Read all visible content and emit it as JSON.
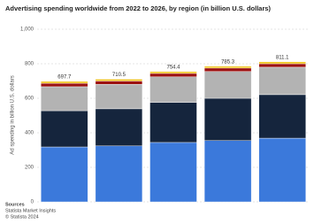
{
  "chart_data": {
    "type": "stacked-bar",
    "title": "Advertising spending worldwide from 2022 to 2026, by region (in billion U.S. dollars)",
    "y_label": "Ad spending in billion U.S. dollars",
    "categories": [
      null,
      null,
      null,
      null,
      null
    ],
    "series": [
      {
        "color": "#3b79db",
        "values": [
          318,
          324,
          344,
          355,
          369
        ]
      },
      {
        "color": "#15253d",
        "values": [
          210,
          215,
          232,
          245,
          252
        ]
      },
      {
        "color": "#b3b3b3",
        "values": [
          139,
          142,
          148,
          155,
          159
        ]
      },
      {
        "color": "#9c1212",
        "values": [
          20,
          19,
          20,
          20,
          20
        ]
      },
      {
        "color": "#f0c41b",
        "values": [
          10.7,
          10.5,
          10.4,
          10.3,
          11.1
        ]
      }
    ],
    "totals": [
      697.7,
      710.5,
      754.4,
      785.3,
      811.1
    ],
    "ylim": [
      0,
      1000
    ],
    "yticks": [
      0,
      200,
      400,
      600,
      800,
      {
        "value": 1000,
        "label": "1,000"
      }
    ],
    "grid": true,
    "source": {
      "heading": "Sources",
      "lines": [
        "Statista Market Insights",
        "© Statista 2024"
      ]
    }
  }
}
